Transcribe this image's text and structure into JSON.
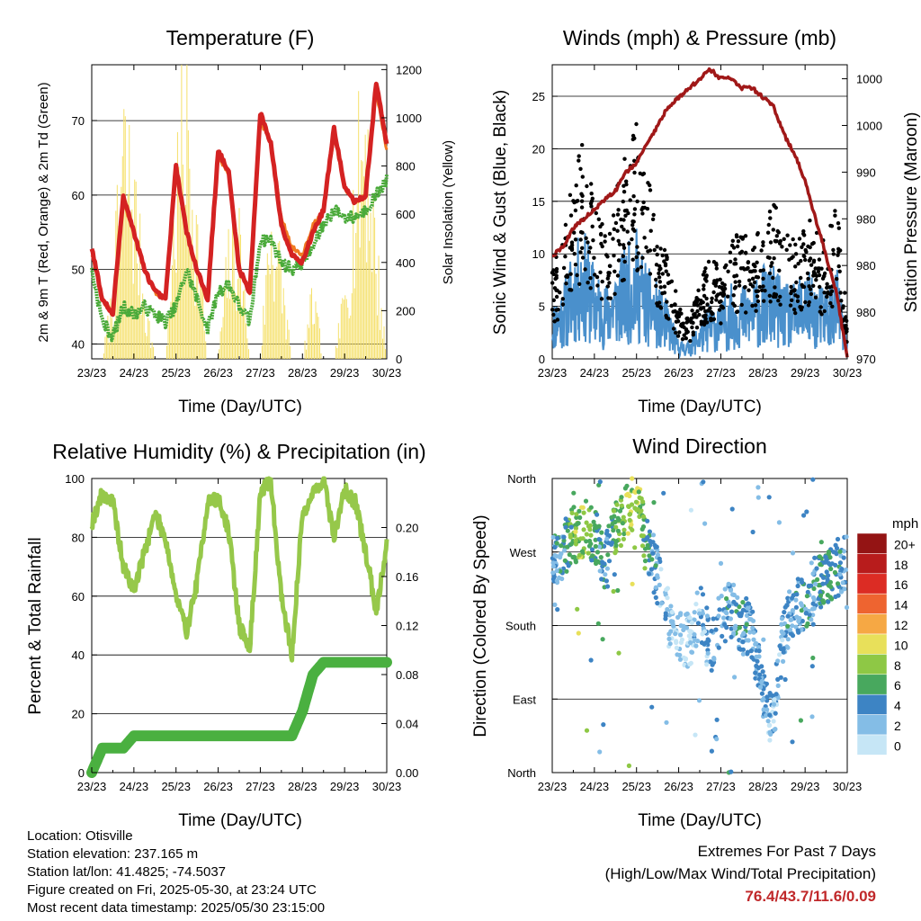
{
  "colors": {
    "temp2m": "#d42222",
    "temp9m": "#f07a22",
    "dewpoint": "#4aaa3a",
    "insolation": "#f5e06a",
    "gust": "#000000",
    "sonic": "#4a90cc",
    "pressure": "#a01818",
    "rh": "#96c84a",
    "precip": "#4ab040",
    "extremes": "#c0282a"
  },
  "x_ticks": [
    "23/23",
    "24/23",
    "25/23",
    "26/23",
    "27/23",
    "28/23",
    "29/23",
    "30/23"
  ],
  "footer": {
    "location": "Location: Otisville",
    "elevation": "Station elevation: 237.165 m",
    "latlon": "Station lat/lon: 41.4825; -74.5037",
    "created": "Figure created on Fri, 2025-05-30, at 23:24 UTC",
    "recent": "Most recent data timestamp: 2025/05/30 23:15:00"
  },
  "extremes": {
    "title": "Extremes For Past 7 Days",
    "subtitle": "(High/Low/Max Wind/Total Precipitation)",
    "values": "76.4/43.7/11.6/0.09"
  },
  "chart_data": [
    {
      "type": "line",
      "title": "Temperature (F)",
      "xlabel": "Time (Day/UTC)",
      "ylabel": "2m & 9m T (Red, Orange) & 2m Td (Green)",
      "y2label": "Solar Insolation (Yellow)",
      "ylim": [
        38,
        77.5
      ],
      "yticks": [
        40,
        50,
        60,
        70
      ],
      "y2lim": [
        0,
        1220
      ],
      "y2ticks": [
        0,
        200,
        400,
        600,
        800,
        1000,
        1200
      ],
      "x": [
        0,
        0.25,
        0.5,
        0.75,
        1,
        1.25,
        1.5,
        1.75,
        2,
        2.25,
        2.5,
        2.75,
        3,
        3.25,
        3.5,
        3.75,
        4,
        4.25,
        4.5,
        4.75,
        5,
        5.25,
        5.5,
        5.75,
        6,
        6.25,
        6.5,
        6.75,
        7
      ],
      "series": [
        {
          "values": [
            53,
            46,
            44,
            60,
            55,
            50,
            47,
            46,
            64,
            55,
            50,
            46,
            66,
            63,
            50,
            47,
            71,
            67,
            56,
            52,
            51,
            55,
            58,
            69,
            61,
            59,
            60,
            75,
            67
          ]
        },
        {
          "values": [
            52,
            46,
            44,
            59,
            55,
            50,
            47,
            46,
            63,
            55,
            50,
            46,
            65,
            63,
            50,
            47,
            70,
            67,
            57,
            53,
            52,
            56,
            58,
            68,
            61,
            59,
            60,
            74,
            66
          ]
        },
        {
          "values": [
            50,
            43,
            41,
            45,
            44,
            45,
            44,
            43,
            45,
            50,
            46,
            42,
            47,
            48,
            45,
            43,
            54,
            54,
            51,
            50,
            51,
            53,
            56,
            58,
            57,
            57,
            58,
            60,
            62
          ]
        },
        {
          "values": [
            0,
            0,
            300,
            1050,
            800,
            300,
            0,
            0,
            800,
            1250,
            600,
            0,
            0,
            500,
            600,
            0,
            0,
            700,
            400,
            0,
            0,
            300,
            0,
            0,
            300,
            800,
            1200,
            500,
            0
          ]
        }
      ]
    },
    {
      "type": "scatter",
      "title": "Winds (mph) & Pressure (mb)",
      "xlabel": "Time (Day/UTC)",
      "ylabel": "Sonic Wind & Gust (Blue, Black)",
      "y2label": "Station Pressure (Maroon)",
      "ylim": [
        0,
        28
      ],
      "yticks": [
        0,
        5,
        10,
        15,
        20,
        25
      ],
      "y2lim": [
        970,
        1001.5
      ],
      "y2ticks": [
        970,
        975,
        980,
        985,
        990,
        995,
        1000
      ],
      "y2ticklabels": [
        "970",
        "980",
        "980",
        "980",
        "990",
        "1000",
        "1000"
      ],
      "x": [
        0,
        0.25,
        0.5,
        0.75,
        1,
        1.25,
        1.5,
        1.75,
        2,
        2.25,
        2.5,
        2.75,
        3,
        3.25,
        3.5,
        3.75,
        4,
        4.25,
        4.5,
        4.75,
        5,
        5.25,
        5.5,
        5.75,
        6,
        6.25,
        6.5,
        6.75,
        7
      ],
      "series": [
        {
          "values": [
            7,
            9,
            14,
            17,
            12,
            10,
            13,
            16,
            18,
            14,
            11,
            8,
            4,
            3,
            6,
            8,
            7,
            9,
            10,
            9,
            11,
            12,
            10,
            9,
            11,
            10,
            9,
            12,
            3
          ]
        },
        {
          "values": [
            3,
            4,
            6,
            7,
            5,
            4,
            5,
            6,
            7,
            5,
            4,
            3,
            1,
            1,
            2,
            3,
            3,
            4,
            4,
            4,
            5,
            5,
            4,
            4,
            5,
            4,
            4,
            5,
            1
          ]
        },
        {
          "values": [
            981,
            982,
            984,
            985,
            986,
            987,
            988,
            990,
            991,
            993,
            995,
            997,
            998,
            999,
            1000,
            1001,
            1000,
            1000,
            999,
            999,
            998,
            997,
            994,
            992,
            989,
            985,
            981,
            977,
            970
          ]
        }
      ]
    },
    {
      "type": "line",
      "title": "Relative Humidity (%) & Precipitation (in)",
      "xlabel": "Time (Day/UTC)",
      "ylabel": "Percent & Total Rainfall",
      "ylim": [
        0,
        100
      ],
      "yticks": [
        0,
        20,
        40,
        60,
        80,
        100
      ],
      "y2lim": [
        0,
        0.24
      ],
      "y2ticks": [
        0,
        0.04,
        0.08,
        0.12,
        0.16,
        0.2
      ],
      "y2ticklabels": [
        "0.00",
        "0.04",
        "0.08",
        "0.12",
        "0.16",
        "0.20"
      ],
      "x": [
        0,
        0.25,
        0.5,
        0.75,
        1,
        1.25,
        1.5,
        1.75,
        2,
        2.25,
        2.5,
        2.75,
        3,
        3.25,
        3.5,
        3.75,
        4,
        4.25,
        4.5,
        4.75,
        5,
        5.25,
        5.5,
        5.75,
        6,
        6.25,
        6.5,
        6.75,
        7
      ],
      "series": [
        {
          "values": [
            85,
            95,
            92,
            70,
            62,
            75,
            88,
            80,
            60,
            48,
            65,
            92,
            93,
            82,
            50,
            42,
            95,
            99,
            60,
            40,
            88,
            95,
            100,
            80,
            96,
            92,
            75,
            55,
            78
          ]
        },
        {
          "values": [
            0,
            0.02,
            0.02,
            0.02,
            0.03,
            0.03,
            0.03,
            0.03,
            0.03,
            0.03,
            0.03,
            0.03,
            0.03,
            0.03,
            0.03,
            0.03,
            0.03,
            0.03,
            0.03,
            0.03,
            0.05,
            0.08,
            0.09,
            0.09,
            0.09,
            0.09,
            0.09,
            0.09,
            0.09
          ]
        }
      ]
    },
    {
      "type": "scatter",
      "title": "Wind Direction",
      "xlabel": "Time (Day/UTC)",
      "ylabel": "Direction (Colored By Speed)",
      "yticks": [
        "North",
        "East",
        "South",
        "West",
        "North"
      ],
      "legend": {
        "title": "mph",
        "labels": [
          "0",
          "2",
          "4",
          "6",
          "8",
          "10",
          "12",
          "14",
          "16",
          "18",
          "20+"
        ],
        "colors": [
          "#c6e6f6",
          "#84bde6",
          "#3d84c4",
          "#48a85e",
          "#8ec845",
          "#e8e05a",
          "#f6a844",
          "#ee6430",
          "#dc2c24",
          "#b81c1c",
          "#941414"
        ]
      },
      "x": [
        0,
        0.25,
        0.5,
        0.75,
        1,
        1.25,
        1.5,
        1.75,
        2,
        2.25,
        2.5,
        2.75,
        3,
        3.25,
        3.5,
        3.75,
        4,
        4.25,
        4.5,
        4.75,
        5,
        5.25,
        5.5,
        5.75,
        6,
        6.25,
        6.5,
        6.75,
        7
      ],
      "direction_deg": [
        260,
        270,
        290,
        300,
        290,
        260,
        300,
        320,
        330,
        280,
        240,
        190,
        170,
        160,
        200,
        150,
        190,
        200,
        180,
        170,
        90,
        60,
        180,
        200,
        210,
        230,
        240,
        250,
        260
      ],
      "speed_mph": [
        3,
        4,
        7,
        8,
        5,
        4,
        6,
        8,
        9,
        5,
        3,
        1,
        1,
        1,
        2,
        3,
        3,
        4,
        4,
        3,
        3,
        2,
        3,
        4,
        4,
        4,
        5,
        5,
        2
      ]
    }
  ]
}
